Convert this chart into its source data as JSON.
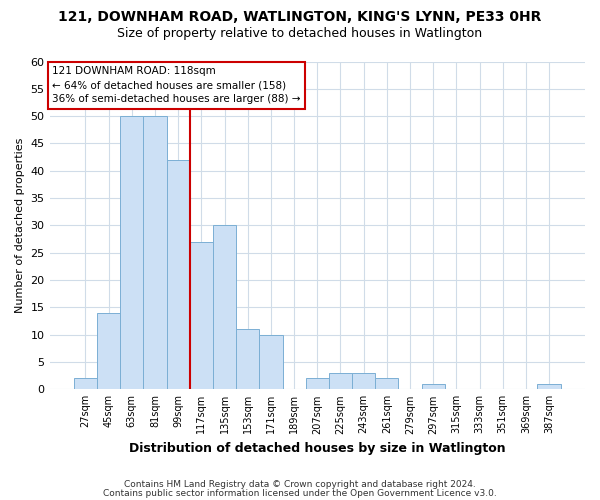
{
  "title1": "121, DOWNHAM ROAD, WATLINGTON, KING'S LYNN, PE33 0HR",
  "title2": "Size of property relative to detached houses in Watlington",
  "xlabel": "Distribution of detached houses by size in Watlington",
  "ylabel": "Number of detached properties",
  "bar_labels": [
    "27sqm",
    "45sqm",
    "63sqm",
    "81sqm",
    "99sqm",
    "117sqm",
    "135sqm",
    "153sqm",
    "171sqm",
    "189sqm",
    "207sqm",
    "225sqm",
    "243sqm",
    "261sqm",
    "279sqm",
    "297sqm",
    "315sqm",
    "333sqm",
    "351sqm",
    "369sqm",
    "387sqm"
  ],
  "bar_values": [
    2,
    14,
    50,
    50,
    42,
    27,
    30,
    11,
    10,
    0,
    2,
    3,
    3,
    2,
    0,
    1,
    0,
    0,
    0,
    0,
    1
  ],
  "bar_color": "#cce0f5",
  "bar_edge_color": "#7bafd4",
  "annotation_title": "121 DOWNHAM ROAD: 118sqm",
  "annotation_line1": "← 64% of detached houses are smaller (158)",
  "annotation_line2": "36% of semi-detached houses are larger (88) →",
  "annotation_box_facecolor": "#ffffff",
  "annotation_box_edgecolor": "#cc0000",
  "vertical_line_color": "#cc0000",
  "ylim": [
    0,
    60
  ],
  "yticks": [
    0,
    5,
    10,
    15,
    20,
    25,
    30,
    35,
    40,
    45,
    50,
    55,
    60
  ],
  "footnote1": "Contains HM Land Registry data © Crown copyright and database right 2024.",
  "footnote2": "Contains public sector information licensed under the Open Government Licence v3.0.",
  "bg_color": "#ffffff",
  "plot_bg_color": "#ffffff",
  "grid_color": "#d0dce8"
}
